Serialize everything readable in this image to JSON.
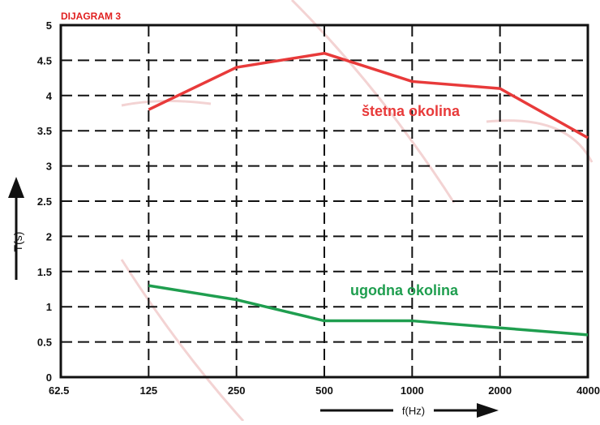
{
  "chart_data": {
    "type": "line",
    "title": "DIJAGRAM 3",
    "xlabel": "f(Hz)",
    "ylabel": "T(s)",
    "categories": [
      "62.5",
      "125",
      "250",
      "500",
      "1000",
      "2000",
      "4000"
    ],
    "ylim": [
      0,
      5
    ],
    "yticks": [
      "0",
      "0.5",
      "1",
      "1.5",
      "2",
      "2.5",
      "3",
      "3.5",
      "4",
      "4.5",
      "5"
    ],
    "grid": true,
    "series": [
      {
        "name": "štetna okolina",
        "color": "#e83a3a",
        "values": [
          null,
          3.8,
          4.4,
          4.6,
          4.2,
          4.1,
          3.4
        ]
      },
      {
        "name": "ugodna okolina",
        "color": "#1f9e4f",
        "values": [
          null,
          1.3,
          1.1,
          0.8,
          0.8,
          0.7,
          0.6
        ]
      }
    ]
  },
  "colors": {
    "title": "#e02020",
    "axis": "#111111",
    "grid": "#111111",
    "watermark": "#f0c9c9"
  }
}
